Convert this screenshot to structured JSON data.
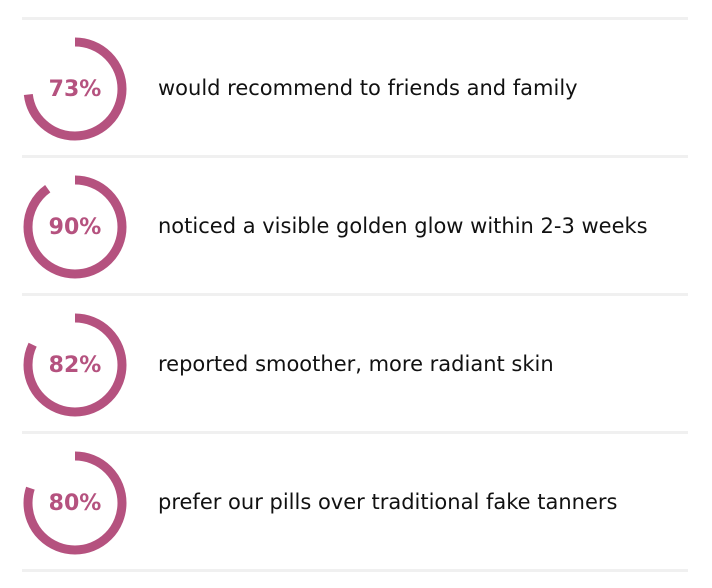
{
  "accent_color": "#b5527f",
  "stats": [
    {
      "percent": 73,
      "value_label": "73%",
      "text": "would recommend to friends and family"
    },
    {
      "percent": 90,
      "value_label": "90%",
      "text": "noticed a visible golden glow within 2-3 weeks"
    },
    {
      "percent": 82,
      "value_label": "82%",
      "text": "reported smoother, more radiant skin"
    },
    {
      "percent": 80,
      "value_label": "80%",
      "text": "prefer our pills over traditional fake tanners"
    }
  ]
}
